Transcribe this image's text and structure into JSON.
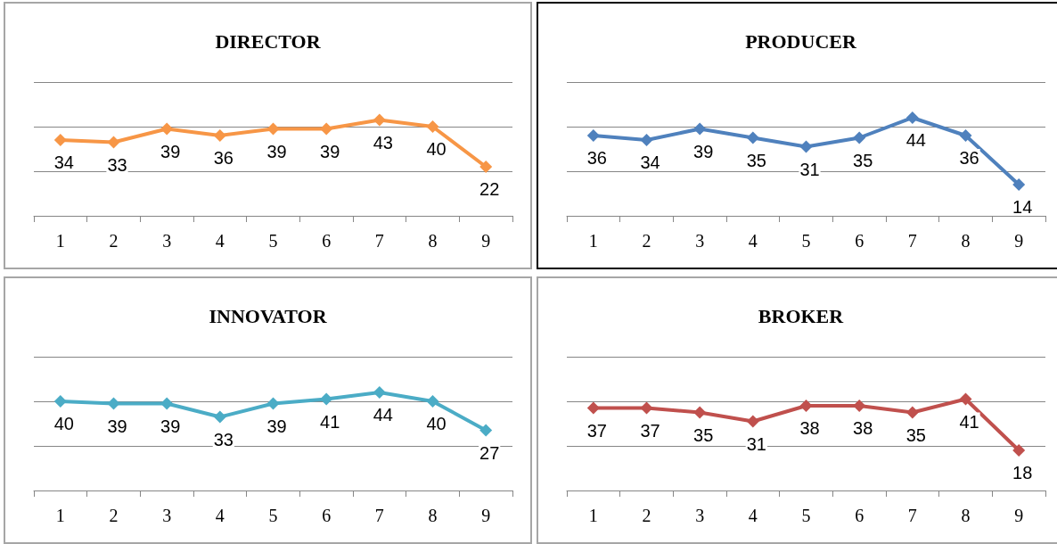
{
  "chart_data": [
    {
      "type": "line",
      "title": "DIRECTOR",
      "categories": [
        "1",
        "2",
        "3",
        "4",
        "5",
        "6",
        "7",
        "8",
        "9"
      ],
      "series": [
        {
          "color": "#f79646",
          "values": [
            34,
            33,
            39,
            36,
            39,
            39,
            43,
            40,
            22
          ]
        }
      ],
      "ylim": [
        0,
        60
      ],
      "yticks": [
        {
          "value": 0,
          "label": null
        },
        {
          "value": 20,
          "label": null
        },
        {
          "value": 40,
          "label": null
        },
        {
          "value": 60,
          "label": null
        }
      ],
      "tick_labels": "x",
      "grid": "y",
      "data_labels": true,
      "marker": "diamond"
    },
    {
      "type": "line",
      "title": "PRODUCER",
      "categories": [
        "1",
        "2",
        "3",
        "4",
        "5",
        "6",
        "7",
        "8",
        "9"
      ],
      "series": [
        {
          "color": "#4f81bd",
          "values": [
            36,
            34,
            39,
            35,
            31,
            35,
            44,
            36,
            14
          ]
        }
      ],
      "ylim": [
        0,
        60
      ],
      "yticks": [
        {
          "value": 0,
          "label": null
        },
        {
          "value": 20,
          "label": null
        },
        {
          "value": 40,
          "label": null
        },
        {
          "value": 60,
          "label": null
        }
      ],
      "tick_labels": "x",
      "grid": "y",
      "data_labels": true,
      "marker": "diamond"
    },
    {
      "type": "line",
      "title": "INNOVATOR",
      "categories": [
        "1",
        "2",
        "3",
        "4",
        "5",
        "6",
        "7",
        "8",
        "9"
      ],
      "series": [
        {
          "color": "#4bacc6",
          "values": [
            40,
            39,
            39,
            33,
            39,
            41,
            44,
            40,
            27
          ]
        }
      ],
      "ylim": [
        0,
        60
      ],
      "yticks": [
        {
          "value": 0,
          "label": null
        },
        {
          "value": 20,
          "label": null
        },
        {
          "value": 40,
          "label": null
        },
        {
          "value": 60,
          "label": null
        }
      ],
      "tick_labels": "x",
      "grid": "y",
      "data_labels": true,
      "marker": "diamond"
    },
    {
      "type": "line",
      "title": "BROKER",
      "categories": [
        "1",
        "2",
        "3",
        "4",
        "5",
        "6",
        "7",
        "8",
        "9"
      ],
      "series": [
        {
          "color": "#c0504d",
          "values": [
            37,
            37,
            35,
            31,
            38,
            38,
            35,
            41,
            18
          ]
        }
      ],
      "ylim": [
        0,
        60
      ],
      "yticks": [
        {
          "value": 0,
          "label": null
        },
        {
          "value": 20,
          "label": null
        },
        {
          "value": 40,
          "label": null
        },
        {
          "value": 60,
          "label": null
        }
      ],
      "tick_labels": "x",
      "grid": "y",
      "data_labels": true,
      "marker": "diamond"
    }
  ]
}
